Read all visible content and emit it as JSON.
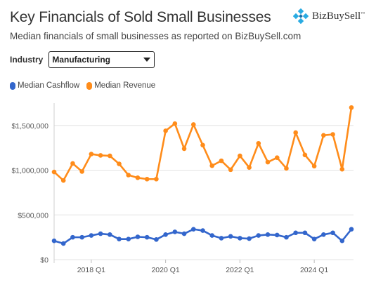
{
  "header": {
    "title": "Key Financials of Sold Small Businesses",
    "subtitle": "Median financials of small businesses as reported on BizBuySell.com",
    "logo_text": "BizBuySell",
    "logo_mark": "™"
  },
  "filter": {
    "label": "Industry",
    "selected": "Manufacturing"
  },
  "colors": {
    "cashflow": "#3366cc",
    "revenue": "#ff8c1a",
    "logo": "#29abe2"
  },
  "chart_data": {
    "type": "line",
    "x": [
      "2017 Q1",
      "2017 Q2",
      "2017 Q3",
      "2017 Q4",
      "2018 Q1",
      "2018 Q2",
      "2018 Q3",
      "2018 Q4",
      "2019 Q1",
      "2019 Q2",
      "2019 Q3",
      "2019 Q4",
      "2020 Q1",
      "2020 Q2",
      "2020 Q3",
      "2020 Q4",
      "2021 Q1",
      "2021 Q2",
      "2021 Q3",
      "2021 Q4",
      "2022 Q1",
      "2022 Q2",
      "2022 Q3",
      "2022 Q4",
      "2023 Q1",
      "2023 Q2",
      "2023 Q3",
      "2023 Q4",
      "2024 Q1",
      "2024 Q2",
      "2024 Q3",
      "2024 Q4",
      "2025 Q1"
    ],
    "series": [
      {
        "name": "Median Cashflow",
        "values": [
          210000,
          180000,
          250000,
          250000,
          270000,
          290000,
          280000,
          230000,
          230000,
          255000,
          250000,
          225000,
          280000,
          310000,
          290000,
          340000,
          325000,
          270000,
          240000,
          260000,
          240000,
          235000,
          270000,
          280000,
          275000,
          250000,
          300000,
          300000,
          230000,
          280000,
          300000,
          210000,
          340000
        ]
      },
      {
        "name": "Median Revenue",
        "values": [
          980000,
          885000,
          1075000,
          985000,
          1180000,
          1165000,
          1160000,
          1070000,
          945000,
          915000,
          900000,
          900000,
          1440000,
          1520000,
          1240000,
          1510000,
          1280000,
          1050000,
          1105000,
          1005000,
          1160000,
          1030000,
          1300000,
          1090000,
          1140000,
          1020000,
          1420000,
          1170000,
          1045000,
          1390000,
          1400000,
          1010000,
          1700000
        ]
      }
    ],
    "x_ticks": [
      "2018 Q1",
      "2020 Q1",
      "2022 Q1",
      "2024 Q1"
    ],
    "y_ticks": [
      "$0",
      "$500,000",
      "$1,000,000",
      "$1,500,000"
    ],
    "ylim": [
      0,
      2000000
    ],
    "grid": "horizontal",
    "legend": "top-left"
  }
}
